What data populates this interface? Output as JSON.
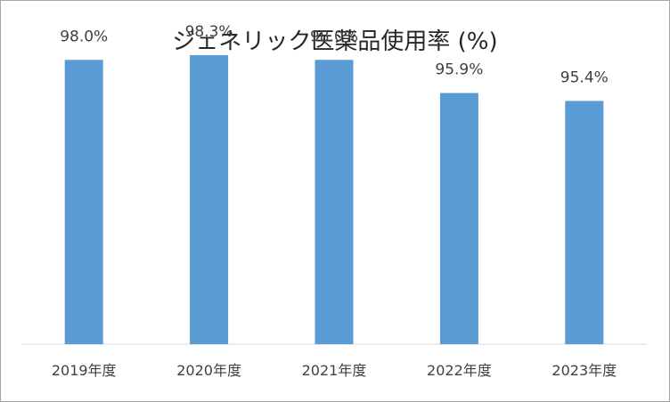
{
  "chart_data": {
    "type": "bar",
    "title": "ジェネリック医薬品使用率 (%)",
    "categories": [
      "2019年度",
      "2020年度",
      "2021年度",
      "2022年度",
      "2023年度"
    ],
    "values": [
      98.0,
      98.3,
      98.0,
      95.9,
      95.4
    ],
    "data_labels": [
      "98.0%",
      "98.3%",
      "98.0%",
      "95.9%",
      "95.4%"
    ],
    "ylim": [
      80,
      100
    ],
    "grid": false,
    "legend": "none",
    "bar_color": "#5b9bd5"
  }
}
